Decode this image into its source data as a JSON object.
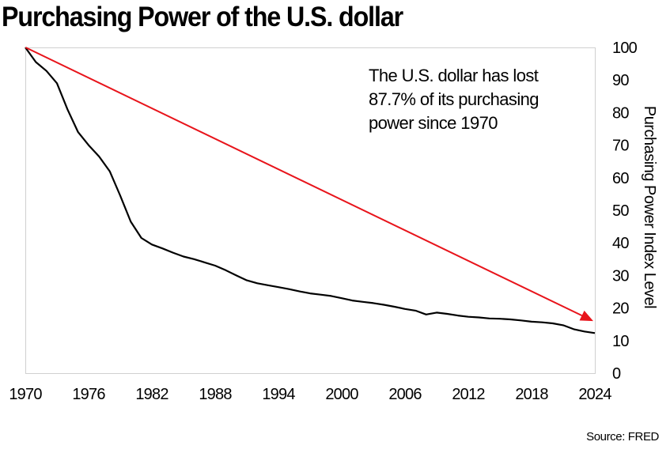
{
  "chart_data": {
    "type": "line",
    "title": "Purchasing Power of the U.S. dollar",
    "xlabel": "",
    "ylabel": "Purchasing Power Index Level",
    "xlim": [
      1970,
      2024
    ],
    "ylim": [
      0,
      100
    ],
    "x_ticks": [
      1970,
      1976,
      1982,
      1988,
      1994,
      2000,
      2006,
      2012,
      2018,
      2024
    ],
    "y_ticks": [
      0,
      10,
      20,
      30,
      40,
      50,
      60,
      70,
      80,
      90,
      100
    ],
    "y_axis_side": "right",
    "grid": false,
    "series": [
      {
        "name": "Purchasing Power Index",
        "color": "#000000",
        "x": [
          1970,
          1971,
          1972,
          1973,
          1974,
          1975,
          1976,
          1977,
          1978,
          1979,
          1980,
          1981,
          1982,
          1983,
          1984,
          1985,
          1986,
          1987,
          1988,
          1989,
          1990,
          1991,
          1992,
          1993,
          1994,
          1995,
          1996,
          1997,
          1998,
          1999,
          2000,
          2001,
          2002,
          2003,
          2004,
          2005,
          2006,
          2007,
          2008,
          2009,
          2010,
          2011,
          2012,
          2013,
          2014,
          2015,
          2016,
          2017,
          2018,
          2019,
          2020,
          2021,
          2022,
          2023,
          2024
        ],
        "values": [
          100,
          95.5,
          92.8,
          89,
          81,
          74,
          70,
          66.5,
          62,
          54.5,
          46.5,
          41.5,
          39.5,
          38.3,
          37,
          35.8,
          35,
          34,
          33,
          31.6,
          30,
          28.5,
          27.6,
          27,
          26.4,
          25.8,
          25.1,
          24.5,
          24.1,
          23.7,
          23,
          22.3,
          21.9,
          21.5,
          21,
          20.4,
          19.7,
          19.2,
          18,
          18.6,
          18.2,
          17.7,
          17.3,
          17.1,
          16.8,
          16.7,
          16.5,
          16.2,
          15.8,
          15.6,
          15.3,
          14.7,
          13.5,
          12.8,
          12.3
        ]
      },
      {
        "name": "Trend arrow",
        "color": "#e8141b",
        "x": [
          1971,
          2024
        ],
        "values": [
          100,
          16
        ]
      }
    ],
    "annotations": [
      {
        "lines": [
          "The U.S. dollar has lost",
          "87.7% of its purchasing",
          "power since 1970"
        ],
        "position": "top-right"
      }
    ],
    "source": "Source: FRED"
  }
}
